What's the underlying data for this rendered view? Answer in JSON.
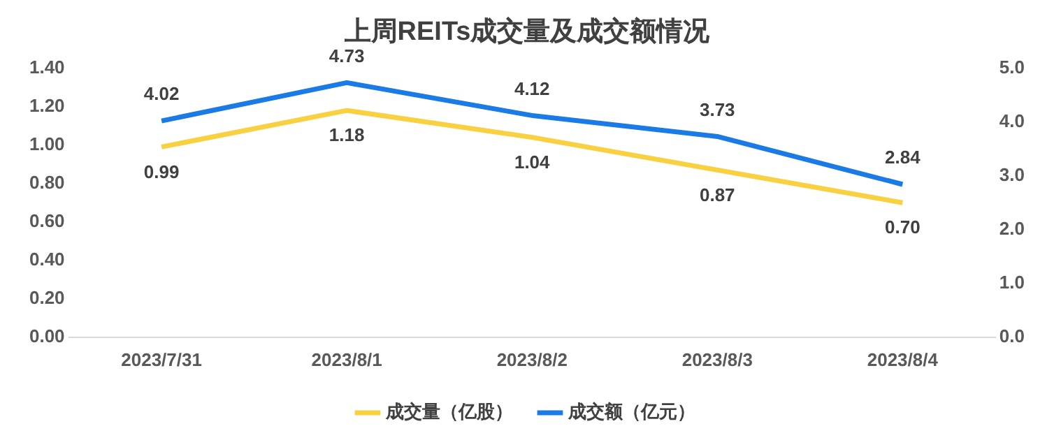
{
  "chart_data": {
    "type": "line",
    "title": "上周REITs成交量及成交额情况",
    "categories": [
      "2023/7/31",
      "2023/8/1",
      "2023/8/2",
      "2023/8/3",
      "2023/8/4"
    ],
    "series": [
      {
        "name": "成交量（亿股）",
        "color": "#f9d03f",
        "values": [
          0.99,
          1.18,
          1.04,
          0.87,
          0.7
        ],
        "value_labels": [
          "0.99",
          "1.18",
          "1.04",
          "0.87",
          "0.70"
        ]
      },
      {
        "name": "成交额（亿元）",
        "color": "#1a7ae6",
        "axis": "y2",
        "values": [
          4.02,
          4.73,
          4.12,
          3.73,
          2.84
        ],
        "value_labels": [
          "4.02",
          "4.73",
          "4.12",
          "3.73",
          "2.84"
        ]
      }
    ],
    "ylim": [
      0,
      1.4
    ],
    "yticks": [
      {
        "value": 0,
        "label": "0.00"
      },
      {
        "value": 0.2,
        "label": "0.20"
      },
      {
        "value": 0.4,
        "label": "0.40"
      },
      {
        "value": 0.6,
        "label": "0.60"
      },
      {
        "value": 0.8,
        "label": "0.80"
      },
      {
        "value": 1,
        "label": "1.00"
      },
      {
        "value": 1.2,
        "label": "1.20"
      },
      {
        "value": 1.4,
        "label": "1.40"
      }
    ],
    "y2lim": [
      0,
      5
    ],
    "y2ticks": [
      {
        "value": 0,
        "label": "0.0"
      },
      {
        "value": 1,
        "label": "1.0"
      },
      {
        "value": 2,
        "label": "2.0"
      },
      {
        "value": 3,
        "label": "3.0"
      },
      {
        "value": 4,
        "label": "4.0"
      },
      {
        "value": 5,
        "label": "5.0"
      }
    ],
    "grid": false,
    "legend": "bottom",
    "marker": "none",
    "line_style": "solid"
  }
}
